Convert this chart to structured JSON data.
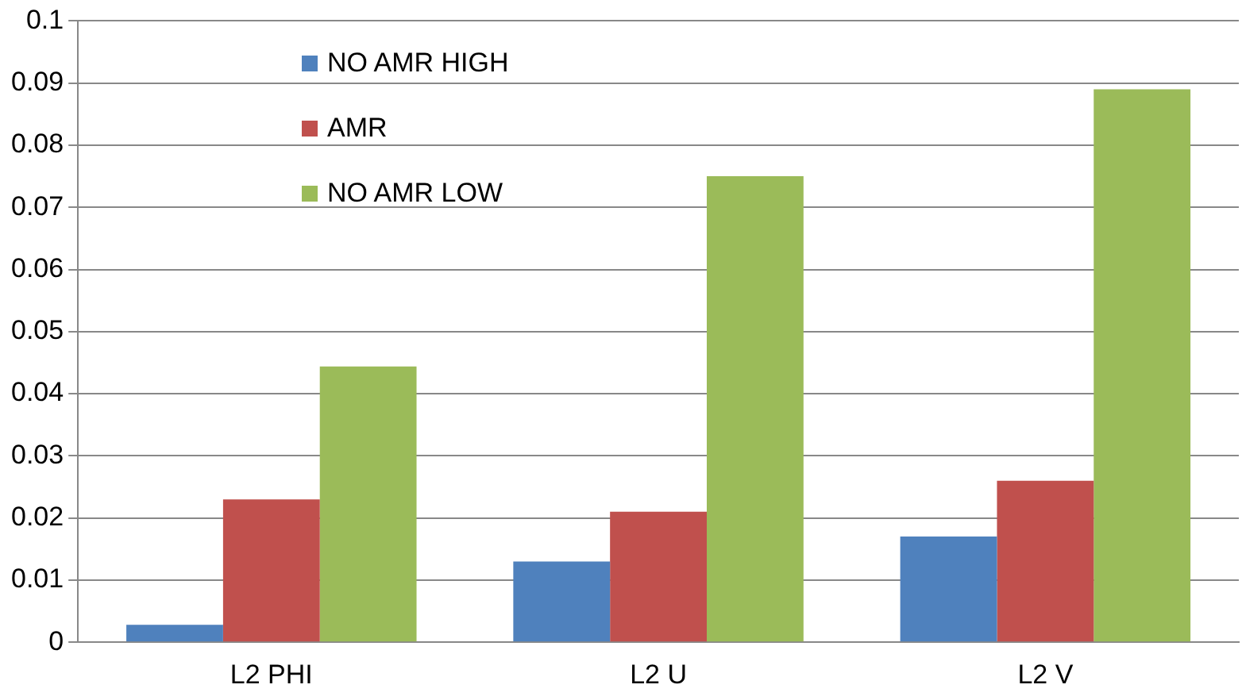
{
  "chart_data": {
    "type": "bar",
    "categories": [
      "L2 PHI",
      "L2 U",
      "L2 V"
    ],
    "series": [
      {
        "name": "NO AMR HIGH",
        "color": "#4f81bd",
        "values": [
          0.0028,
          0.013,
          0.017
        ]
      },
      {
        "name": "AMR",
        "color": "#c0504d",
        "values": [
          0.023,
          0.021,
          0.026
        ]
      },
      {
        "name": "NO AMR LOW",
        "color": "#9bbb59",
        "values": [
          0.0444,
          0.075,
          0.089
        ]
      }
    ],
    "ylim": [
      0,
      0.1
    ],
    "yticks": [
      0,
      0.01,
      0.02,
      0.03,
      0.04,
      0.05,
      0.06,
      0.07,
      0.08,
      0.09,
      0.1
    ],
    "grid": "y",
    "legend": "top left"
  }
}
